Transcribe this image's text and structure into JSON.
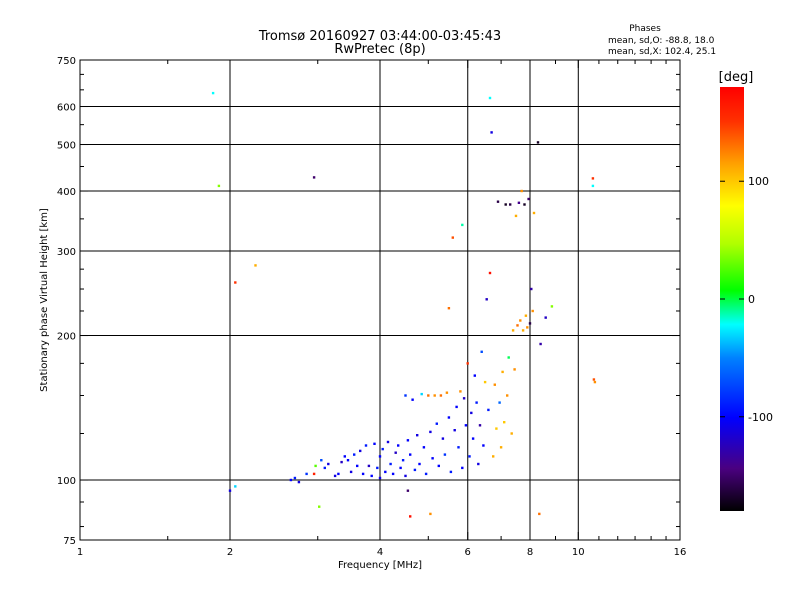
{
  "chart_data": {
    "type": "scatter",
    "title": "Tromsø 20160927 03:44:00-03:45:43",
    "subtitle": "RwPretec (8p)",
    "xlabel": "Frequency [MHz]",
    "ylabel": "Stationary phase Virtual Height [km]",
    "x_scale": "log",
    "y_scale": "log",
    "xlim": [
      1,
      16
    ],
    "ylim": [
      75,
      750
    ],
    "x_ticks": [
      1,
      2,
      4,
      6,
      8,
      10,
      16
    ],
    "x_tick_labels": [
      "1",
      "2",
      "4",
      "6",
      "8",
      "10",
      "16"
    ],
    "y_ticks": [
      75,
      100,
      200,
      300,
      400,
      500,
      600,
      750
    ],
    "y_tick_labels": [
      "75",
      "100",
      "200",
      "300",
      "400",
      "500",
      "600",
      "750"
    ],
    "grid": true,
    "phase_info": {
      "heading": "Phases",
      "line_o": "mean, sd,O: -88.8, 18.0",
      "line_x": "mean, sd,X: 102.4, 25.1"
    },
    "colorbar": {
      "label": "[deg]",
      "range": [
        -180,
        180
      ],
      "ticks": [
        100,
        0,
        -100
      ],
      "tick_labels": [
        "100",
        "0",
        "-100"
      ]
    },
    "points": [
      [
        1.85,
        640,
        -20
      ],
      [
        1.9,
        410,
        40
      ],
      [
        2.0,
        95,
        -110
      ],
      [
        2.05,
        97,
        -30
      ],
      [
        2.05,
        258,
        150
      ],
      [
        2.25,
        280,
        110
      ],
      [
        2.65,
        100,
        -100
      ],
      [
        2.7,
        101,
        -90
      ],
      [
        2.75,
        99,
        -110
      ],
      [
        2.85,
        103,
        -80
      ],
      [
        2.95,
        103,
        160
      ],
      [
        2.95,
        427,
        -150
      ],
      [
        2.97,
        107,
        30
      ],
      [
        3.02,
        88,
        40
      ],
      [
        3.05,
        110,
        -70
      ],
      [
        3.1,
        106,
        -90
      ],
      [
        3.15,
        108,
        -110
      ],
      [
        3.25,
        102,
        -110
      ],
      [
        3.3,
        103,
        -100
      ],
      [
        3.35,
        109,
        -120
      ],
      [
        3.4,
        112,
        -100
      ],
      [
        3.45,
        110,
        -100
      ],
      [
        3.5,
        104,
        -110
      ],
      [
        3.55,
        113,
        -90
      ],
      [
        3.6,
        107,
        -100
      ],
      [
        3.65,
        115,
        -110
      ],
      [
        3.7,
        103,
        -100
      ],
      [
        3.75,
        118,
        -90
      ],
      [
        3.8,
        107,
        -120
      ],
      [
        3.85,
        102,
        -100
      ],
      [
        3.9,
        119,
        -100
      ],
      [
        3.95,
        106,
        -90
      ],
      [
        4.0,
        101,
        -110
      ],
      [
        4.0,
        112,
        -100
      ],
      [
        4.05,
        116,
        -90
      ],
      [
        4.1,
        104,
        -100
      ],
      [
        4.15,
        120,
        -110
      ],
      [
        4.2,
        108,
        -90
      ],
      [
        4.25,
        103,
        -100
      ],
      [
        4.3,
        114,
        -120
      ],
      [
        4.35,
        118,
        -100
      ],
      [
        4.4,
        106,
        -100
      ],
      [
        4.45,
        110,
        -90
      ],
      [
        4.5,
        102,
        -110
      ],
      [
        4.5,
        150,
        -80
      ],
      [
        4.55,
        121,
        -100
      ],
      [
        4.55,
        95,
        -150
      ],
      [
        4.6,
        113,
        -100
      ],
      [
        4.6,
        84,
        170
      ],
      [
        4.65,
        147,
        -100
      ],
      [
        4.7,
        105,
        -90
      ],
      [
        4.75,
        124,
        -110
      ],
      [
        4.8,
        108,
        -100
      ],
      [
        4.85,
        151,
        -30
      ],
      [
        4.9,
        117,
        -100
      ],
      [
        4.95,
        103,
        -90
      ],
      [
        5.0,
        150,
        130
      ],
      [
        5.05,
        126,
        -110
      ],
      [
        5.05,
        85,
        120
      ],
      [
        5.1,
        111,
        -100
      ],
      [
        5.15,
        150,
        120
      ],
      [
        5.2,
        131,
        -90
      ],
      [
        5.25,
        107,
        -100
      ],
      [
        5.3,
        150,
        130
      ],
      [
        5.35,
        122,
        -110
      ],
      [
        5.4,
        113,
        -80
      ],
      [
        5.45,
        152,
        120
      ],
      [
        5.5,
        135,
        -100
      ],
      [
        5.5,
        228,
        130
      ],
      [
        5.55,
        104,
        -90
      ],
      [
        5.6,
        320,
        140
      ],
      [
        5.65,
        127,
        -110
      ],
      [
        5.7,
        142,
        -100
      ],
      [
        5.75,
        117,
        -90
      ],
      [
        5.8,
        153,
        120
      ],
      [
        5.85,
        340,
        -10
      ],
      [
        5.85,
        106,
        -100
      ],
      [
        5.9,
        148,
        -120
      ],
      [
        5.95,
        130,
        -100
      ],
      [
        6.0,
        175,
        150
      ],
      [
        6.05,
        112,
        -90
      ],
      [
        6.1,
        138,
        -110
      ],
      [
        6.15,
        122,
        -100
      ],
      [
        6.2,
        165,
        -100
      ],
      [
        6.25,
        145,
        -90
      ],
      [
        6.3,
        108,
        -110
      ],
      [
        6.35,
        130,
        -130
      ],
      [
        6.4,
        185,
        -70
      ],
      [
        6.45,
        118,
        -100
      ],
      [
        6.5,
        160,
        100
      ],
      [
        6.55,
        238,
        -120
      ],
      [
        6.6,
        140,
        -90
      ],
      [
        6.65,
        625,
        -20
      ],
      [
        6.65,
        270,
        170
      ],
      [
        6.7,
        530,
        -110
      ],
      [
        6.75,
        112,
        110
      ],
      [
        6.8,
        158,
        120
      ],
      [
        6.85,
        128,
        100
      ],
      [
        6.9,
        380,
        -160
      ],
      [
        6.95,
        145,
        -60
      ],
      [
        7.0,
        117,
        110
      ],
      [
        7.05,
        168,
        110
      ],
      [
        7.1,
        132,
        100
      ],
      [
        7.15,
        375,
        -170
      ],
      [
        7.2,
        150,
        120
      ],
      [
        7.25,
        180,
        0
      ],
      [
        7.3,
        375,
        -160
      ],
      [
        7.35,
        125,
        110
      ],
      [
        7.4,
        205,
        110
      ],
      [
        7.45,
        170,
        120
      ],
      [
        7.5,
        355,
        110
      ],
      [
        7.55,
        210,
        130
      ],
      [
        7.6,
        378,
        -140
      ],
      [
        7.65,
        215,
        120
      ],
      [
        7.7,
        400,
        120
      ],
      [
        7.75,
        205,
        110
      ],
      [
        7.8,
        375,
        -170
      ],
      [
        7.85,
        220,
        110
      ],
      [
        7.9,
        208,
        120
      ],
      [
        7.95,
        385,
        -150
      ],
      [
        8.0,
        212,
        -160
      ],
      [
        8.05,
        250,
        -130
      ],
      [
        8.1,
        225,
        120
      ],
      [
        8.15,
        360,
        110
      ],
      [
        8.3,
        505,
        -170
      ],
      [
        8.35,
        85,
        130
      ],
      [
        8.4,
        192,
        -130
      ],
      [
        8.6,
        218,
        -120
      ],
      [
        8.85,
        230,
        40
      ],
      [
        10.7,
        425,
        150
      ],
      [
        10.7,
        410,
        -20
      ],
      [
        10.75,
        162,
        140
      ],
      [
        10.8,
        160,
        120
      ]
    ]
  }
}
